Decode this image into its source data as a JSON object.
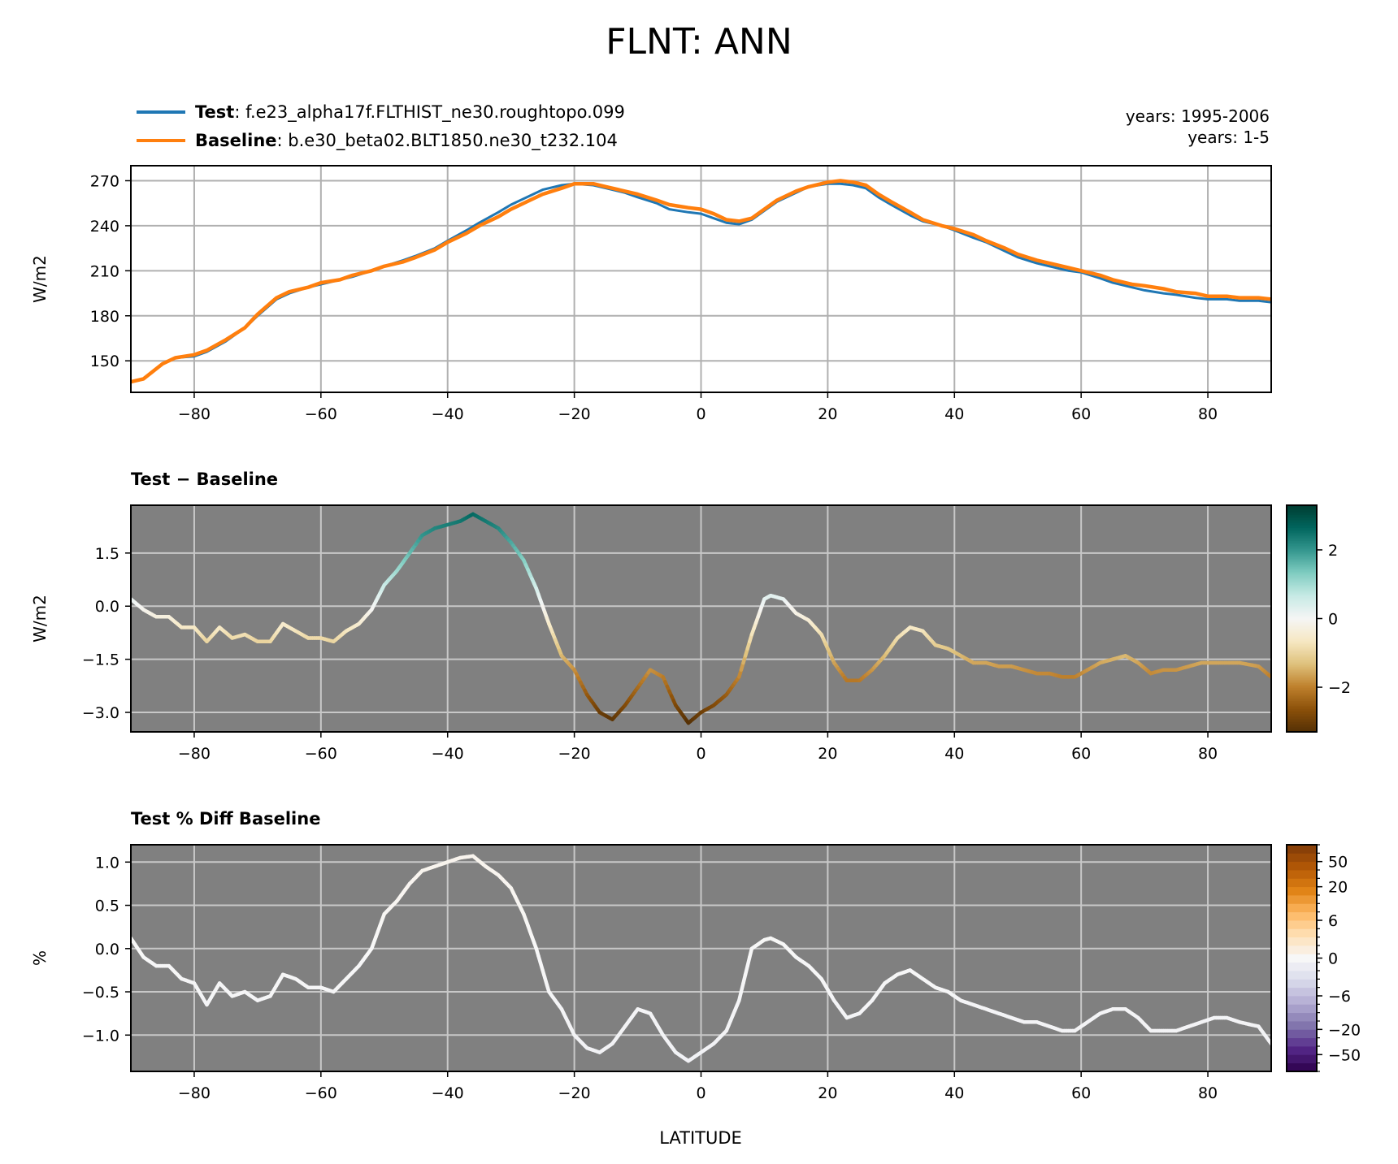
{
  "title": "FLNT: ANN",
  "legend": {
    "test_label": "Test",
    "test_case": ": f.e23_alpha17f.FLTHIST_ne30.roughtopo.099",
    "base_label": "Baseline",
    "base_case": ": b.e30_beta02.BLT1850.ne30_t232.104",
    "test_years": "years: 1995-2006",
    "base_years": "years: 1-5"
  },
  "colors": {
    "test": "#1f77b4",
    "baseline": "#ff7f0e",
    "panel_bg": "#808080",
    "grid_light": "#b0b0b0",
    "grid_dark": "#c8c8c8"
  },
  "chart_data": [
    {
      "type": "line",
      "panel": "top",
      "title": "",
      "xlabel": "",
      "ylabel": "W/m2",
      "xlim": [
        -90,
        90
      ],
      "ylim": [
        129,
        280
      ],
      "xticks": [
        -80,
        -60,
        -40,
        -20,
        0,
        20,
        40,
        60,
        80
      ],
      "xticklabels": [
        "−80",
        "−60",
        "−40",
        "−20",
        "0",
        "20",
        "40",
        "60",
        "80"
      ],
      "yticks": [
        150,
        180,
        210,
        240,
        270
      ],
      "yticklabels": [
        "150",
        "180",
        "210",
        "240",
        "270"
      ],
      "grid": true,
      "x": [
        -90,
        -88,
        -85,
        -83,
        -80,
        -78,
        -75,
        -72,
        -70,
        -67,
        -65,
        -62,
        -60,
        -57,
        -55,
        -52,
        -50,
        -47,
        -45,
        -42,
        -40,
        -37,
        -35,
        -32,
        -30,
        -27,
        -25,
        -22,
        -20,
        -17,
        -15,
        -12,
        -10,
        -7,
        -5,
        -2,
        0,
        2,
        4,
        6,
        8,
        10,
        12,
        15,
        17,
        20,
        22,
        24,
        26,
        28,
        30,
        33,
        35,
        38,
        40,
        43,
        45,
        48,
        50,
        53,
        55,
        58,
        60,
        63,
        65,
        68,
        70,
        73,
        75,
        78,
        80,
        83,
        85,
        88,
        90
      ],
      "series": [
        {
          "name": "Test",
          "values": [
            136,
            138,
            148,
            152,
            153,
            156,
            163,
            172,
            180,
            191,
            195,
            199,
            201,
            204,
            206,
            210,
            213,
            217,
            220,
            225,
            230,
            237,
            242,
            249,
            254,
            260,
            264,
            267,
            268,
            267,
            265,
            262,
            259,
            255,
            251,
            249,
            248,
            245,
            242,
            241,
            244,
            250,
            256,
            262,
            266,
            268,
            268,
            267,
            265,
            259,
            254,
            247,
            243,
            240,
            237,
            232,
            229,
            223,
            219,
            215,
            213,
            210,
            209,
            205,
            202,
            199,
            197,
            195,
            194,
            192,
            191,
            191,
            190,
            190,
            189
          ]
        },
        {
          "name": "Baseline",
          "values": [
            136,
            138,
            148,
            152,
            154,
            157,
            164,
            172,
            181,
            192,
            196,
            199,
            202,
            204,
            207,
            210,
            213,
            216,
            219,
            224,
            229,
            235,
            240,
            246,
            251,
            257,
            261,
            265,
            268,
            268,
            266,
            263,
            261,
            257,
            254,
            252,
            251,
            248,
            244,
            243,
            245,
            251,
            257,
            263,
            266,
            269,
            270,
            269,
            267,
            261,
            256,
            249,
            244,
            240,
            238,
            234,
            230,
            225,
            221,
            217,
            215,
            212,
            210,
            207,
            204,
            201,
            200,
            198,
            196,
            195,
            193,
            193,
            192,
            192,
            191
          ]
        }
      ]
    },
    {
      "type": "line",
      "panel": "middle",
      "title": "Test − Baseline",
      "xlabel": "",
      "ylabel": "W/m2",
      "xlim": [
        -90,
        90
      ],
      "ylim": [
        -3.55,
        2.85
      ],
      "xticks": [
        -80,
        -60,
        -40,
        -20,
        0,
        20,
        40,
        60,
        80
      ],
      "xticklabels": [
        "−80",
        "−60",
        "−40",
        "−20",
        "0",
        "20",
        "40",
        "60",
        "80"
      ],
      "yticks": [
        -3.0,
        -1.5,
        0.0,
        1.5
      ],
      "yticklabels": [
        "−3.0",
        "−1.5",
        "0.0",
        "1.5"
      ],
      "grid": true,
      "x": [
        -90,
        -88,
        -86,
        -84,
        -82,
        -80,
        -78,
        -76,
        -74,
        -72,
        -70,
        -68,
        -66,
        -64,
        -62,
        -60,
        -58,
        -56,
        -54,
        -52,
        -50,
        -48,
        -46,
        -44,
        -42,
        -40,
        -38,
        -36,
        -34,
        -32,
        -30,
        -28,
        -26,
        -24,
        -22,
        -20,
        -18,
        -16,
        -14,
        -12,
        -10,
        -8,
        -6,
        -4,
        -2,
        0,
        2,
        4,
        6,
        8,
        10,
        11,
        13,
        15,
        17,
        19,
        21,
        23,
        25,
        27,
        29,
        31,
        33,
        35,
        37,
        39,
        41,
        43,
        45,
        47,
        49,
        51,
        53,
        55,
        57,
        59,
        61,
        63,
        65,
        67,
        69,
        71,
        73,
        75,
        77,
        79,
        81,
        83,
        85,
        88,
        90
      ],
      "series": [
        {
          "name": "Test − Baseline",
          "values": [
            0.2,
            -0.1,
            -0.3,
            -0.3,
            -0.6,
            -0.6,
            -1.0,
            -0.6,
            -0.9,
            -0.8,
            -1.0,
            -1.0,
            -0.5,
            -0.7,
            -0.9,
            -0.9,
            -1.0,
            -0.7,
            -0.5,
            -0.1,
            0.6,
            1.0,
            1.5,
            2.0,
            2.2,
            2.3,
            2.4,
            2.6,
            2.4,
            2.2,
            1.8,
            1.3,
            0.5,
            -0.5,
            -1.4,
            -1.8,
            -2.5,
            -3.0,
            -3.2,
            -2.8,
            -2.3,
            -1.8,
            -2.0,
            -2.8,
            -3.3,
            -3.0,
            -2.8,
            -2.5,
            -2.0,
            -0.8,
            0.2,
            0.3,
            0.2,
            -0.2,
            -0.4,
            -0.8,
            -1.6,
            -2.1,
            -2.1,
            -1.8,
            -1.4,
            -0.9,
            -0.6,
            -0.7,
            -1.1,
            -1.2,
            -1.4,
            -1.6,
            -1.6,
            -1.7,
            -1.7,
            -1.8,
            -1.9,
            -1.9,
            -2.0,
            -2.0,
            -1.8,
            -1.6,
            -1.5,
            -1.4,
            -1.6,
            -1.9,
            -1.8,
            -1.8,
            -1.7,
            -1.6,
            -1.6,
            -1.6,
            -1.6,
            -1.7,
            -2.0
          ]
        }
      ],
      "colorbar": {
        "cmap": "BrBG",
        "vmin": -3.3,
        "vmax": 3.3,
        "ticks": [
          -2,
          0,
          2
        ],
        "ticklabels": [
          "−2",
          "0",
          "2"
        ]
      }
    },
    {
      "type": "line",
      "panel": "bottom",
      "title": "Test % Diff Baseline",
      "xlabel": "LATITUDE",
      "ylabel": "%",
      "xlim": [
        -90,
        90
      ],
      "ylim": [
        -1.42,
        1.2
      ],
      "xticks": [
        -80,
        -60,
        -40,
        -20,
        0,
        20,
        40,
        60,
        80
      ],
      "xticklabels": [
        "−80",
        "−60",
        "−40",
        "−20",
        "0",
        "20",
        "40",
        "60",
        "80"
      ],
      "yticks": [
        -1.0,
        -0.5,
        0.0,
        0.5,
        1.0
      ],
      "yticklabels": [
        "−1.0",
        "−0.5",
        "0.0",
        "0.5",
        "1.0"
      ],
      "grid": true,
      "x": [
        -90,
        -88,
        -86,
        -84,
        -82,
        -80,
        -78,
        -76,
        -74,
        -72,
        -70,
        -68,
        -66,
        -64,
        -62,
        -60,
        -58,
        -56,
        -54,
        -52,
        -50,
        -48,
        -46,
        -44,
        -42,
        -40,
        -38,
        -36,
        -34,
        -32,
        -30,
        -28,
        -26,
        -24,
        -22,
        -20,
        -18,
        -16,
        -14,
        -12,
        -10,
        -8,
        -6,
        -4,
        -2,
        0,
        2,
        4,
        6,
        8,
        10,
        11,
        13,
        15,
        17,
        19,
        21,
        23,
        25,
        27,
        29,
        31,
        33,
        35,
        37,
        39,
        41,
        43,
        45,
        47,
        49,
        51,
        53,
        55,
        57,
        59,
        61,
        63,
        65,
        67,
        69,
        71,
        73,
        75,
        77,
        79,
        81,
        83,
        85,
        88,
        90
      ],
      "series": [
        {
          "name": "Test % Diff Baseline",
          "values": [
            0.12,
            -0.1,
            -0.2,
            -0.2,
            -0.35,
            -0.4,
            -0.65,
            -0.4,
            -0.55,
            -0.5,
            -0.6,
            -0.55,
            -0.3,
            -0.35,
            -0.45,
            -0.45,
            -0.5,
            -0.35,
            -0.2,
            0.0,
            0.4,
            0.55,
            0.75,
            0.9,
            0.95,
            1.0,
            1.05,
            1.07,
            0.95,
            0.85,
            0.7,
            0.4,
            0.0,
            -0.5,
            -0.7,
            -1.0,
            -1.15,
            -1.2,
            -1.1,
            -0.9,
            -0.7,
            -0.75,
            -1.0,
            -1.2,
            -1.3,
            -1.2,
            -1.1,
            -0.95,
            -0.6,
            0.0,
            0.1,
            0.12,
            0.05,
            -0.1,
            -0.2,
            -0.35,
            -0.6,
            -0.8,
            -0.75,
            -0.6,
            -0.4,
            -0.3,
            -0.25,
            -0.35,
            -0.45,
            -0.5,
            -0.6,
            -0.65,
            -0.7,
            -0.75,
            -0.8,
            -0.85,
            -0.85,
            -0.9,
            -0.95,
            -0.95,
            -0.85,
            -0.75,
            -0.7,
            -0.7,
            -0.8,
            -0.95,
            -0.95,
            -0.95,
            -0.9,
            -0.85,
            -0.8,
            -0.8,
            -0.85,
            -0.9,
            -1.1
          ]
        }
      ],
      "colorbar": {
        "cmap": "PuOr_r",
        "levels": [
          -100,
          -75,
          -50,
          -40,
          -30,
          -20,
          -15,
          -10,
          -8,
          -6,
          -4,
          -2,
          -1,
          -0.5,
          0.5,
          1,
          2,
          4,
          6,
          8,
          10,
          15,
          20,
          30,
          40,
          50,
          75,
          100
        ],
        "ticks": [
          -50,
          -20,
          -6,
          0,
          6,
          20,
          50
        ],
        "ticklabels": [
          "−50",
          "−20",
          "−6",
          "0",
          "6",
          "20",
          "50"
        ]
      }
    }
  ]
}
